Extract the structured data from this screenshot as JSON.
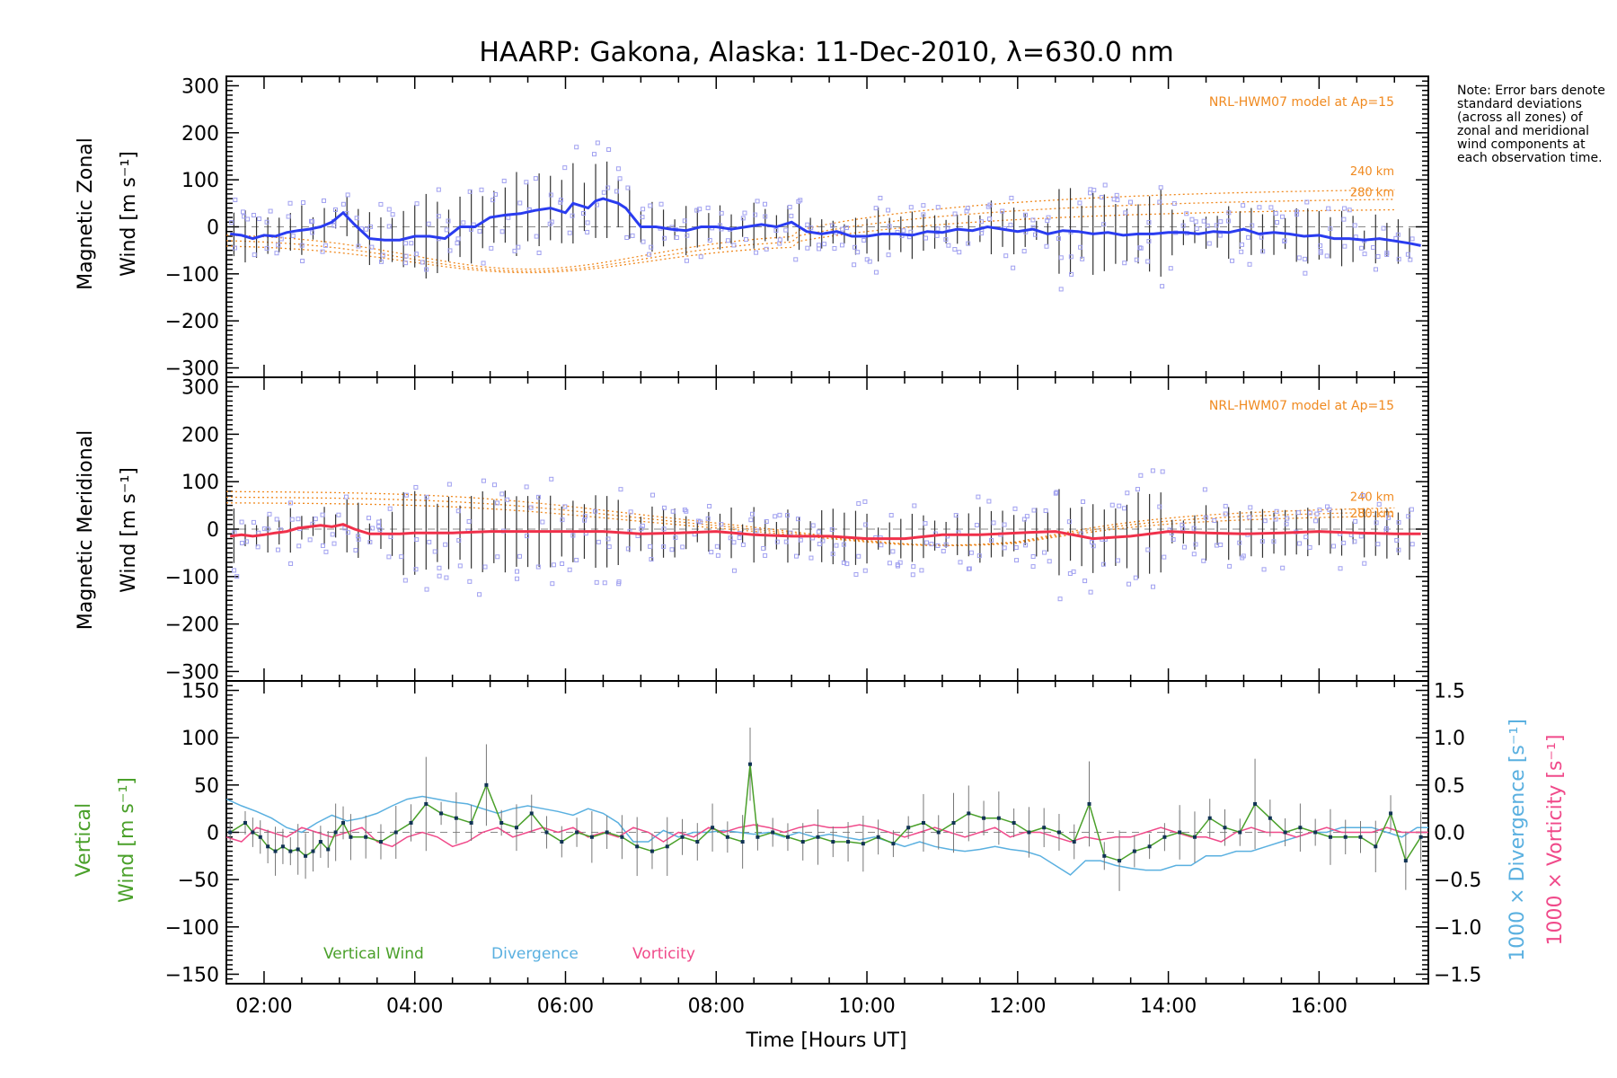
{
  "chart_data": [
    {
      "type": "line",
      "title": "HAARP: Gakona,  Alaska: 11-Dec-2010, λ=630.0 nm",
      "ylabel_line1": "Magnetic Zonal",
      "ylabel_line2": "Wind [m s⁻¹]",
      "ylim": [
        -320,
        320
      ],
      "y_ticks": [
        -300,
        -200,
        -100,
        0,
        100,
        200,
        300
      ],
      "model_annotation": "NRL-HWM07 model at Ap=15",
      "model_labels": [
        "240 km",
        "280 km"
      ],
      "series": [
        {
          "color": "#2a3cf0",
          "x": [
            1.55,
            1.7,
            1.85,
            2.0,
            2.15,
            2.3,
            2.45,
            2.6,
            2.75,
            2.9,
            3.05,
            3.2,
            3.4,
            3.6,
            3.8,
            4.0,
            4.2,
            4.4,
            4.6,
            4.8,
            5.0,
            5.2,
            5.4,
            5.6,
            5.8,
            6.0,
            6.1,
            6.2,
            6.3,
            6.4,
            6.5,
            6.6,
            6.7,
            6.8,
            7.0,
            7.2,
            7.4,
            7.6,
            7.8,
            8.0,
            8.2,
            8.4,
            8.6,
            8.8,
            9.0,
            9.2,
            9.4,
            9.6,
            9.8,
            10.0,
            10.2,
            10.4,
            10.6,
            10.8,
            11.0,
            11.2,
            11.4,
            11.6,
            11.8,
            12.0,
            12.2,
            12.4,
            12.6,
            12.8,
            13.0,
            13.2,
            13.4,
            13.6,
            13.8,
            14.0,
            14.2,
            14.4,
            14.6,
            14.8,
            15.0,
            15.2,
            15.4,
            15.6,
            15.8,
            16.0,
            16.2,
            16.4,
            16.6,
            16.8,
            17.0,
            17.2,
            17.35
          ],
          "y": [
            -15,
            -18,
            -25,
            -18,
            -20,
            -12,
            -8,
            -5,
            0,
            10,
            30,
            5,
            -25,
            -28,
            -28,
            -20,
            -20,
            -25,
            0,
            0,
            20,
            25,
            28,
            35,
            40,
            30,
            50,
            45,
            40,
            55,
            60,
            55,
            50,
            40,
            0,
            0,
            -5,
            -8,
            0,
            0,
            -5,
            0,
            5,
            0,
            10,
            -10,
            -15,
            -10,
            -20,
            -20,
            -15,
            -15,
            -18,
            -10,
            -12,
            -5,
            -8,
            0,
            -5,
            -10,
            -5,
            -15,
            -8,
            -10,
            -15,
            -12,
            -18,
            -15,
            -15,
            -12,
            -12,
            -15,
            -10,
            -12,
            -5,
            -15,
            -12,
            -15,
            -20,
            -18,
            -25,
            -25,
            -28,
            -25,
            -30,
            -35,
            -40
          ]
        }
      ]
    },
    {
      "type": "line",
      "ylabel_line1": "Magnetic Meridional",
      "ylabel_line2": "Wind [m s⁻¹]",
      "ylim": [
        -320,
        320
      ],
      "y_ticks": [
        -300,
        -200,
        -100,
        0,
        100,
        200,
        300
      ],
      "model_annotation": "NRL-HWM07 model at Ap=15",
      "model_labels": [
        "240 km",
        "280 km"
      ],
      "series": [
        {
          "color": "#f0304a",
          "x": [
            1.55,
            1.7,
            1.85,
            2.0,
            2.15,
            2.3,
            2.45,
            2.6,
            2.75,
            2.9,
            3.05,
            3.2,
            3.4,
            3.6,
            3.8,
            4.0,
            4.5,
            5.0,
            5.5,
            6.0,
            6.5,
            7.0,
            7.5,
            8.0,
            8.5,
            9.0,
            9.5,
            10.0,
            10.5,
            11.0,
            11.5,
            12.0,
            12.5,
            13.0,
            13.5,
            14.0,
            14.5,
            15.0,
            15.5,
            16.0,
            16.5,
            17.0,
            17.35
          ],
          "y": [
            -15,
            -12,
            -15,
            -12,
            -8,
            -5,
            2,
            5,
            8,
            5,
            10,
            0,
            -10,
            -10,
            -10,
            -8,
            -8,
            -5,
            -5,
            -5,
            -5,
            -10,
            -8,
            -5,
            -12,
            -15,
            -15,
            -20,
            -20,
            -12,
            -12,
            -8,
            -5,
            -20,
            -15,
            -5,
            -8,
            -10,
            -8,
            -5,
            -8,
            -10,
            -10
          ]
        }
      ]
    },
    {
      "type": "line",
      "ylabel_left_line1": "Vertical",
      "ylabel_left_line2": "Wind [m s⁻¹]",
      "ylabel_right_1": "1000 × Divergence [s⁻¹]",
      "ylabel_right_2": "1000 × Vorticity [s⁻¹]",
      "xlabel": "Time [Hours UT]",
      "ylim": [
        -160,
        160
      ],
      "y_ticks": [
        -150,
        -100,
        -50,
        0,
        50,
        100,
        150
      ],
      "y2lim": [
        -1.6,
        1.6
      ],
      "y2_ticks": [
        "1.5",
        "1.0",
        "0.5",
        "0.0",
        "−0.5",
        "−1.0",
        "−1.5"
      ],
      "x_ticks": [
        "02:00",
        "04:00",
        "06:00",
        "08:00",
        "10:00",
        "12:00",
        "14:00",
        "16:00"
      ],
      "xlim": [
        1.5,
        17.45
      ],
      "legend": [
        "Vertical Wind",
        "Divergence",
        "Vorticity"
      ],
      "series": [
        {
          "name": "Vertical Wind",
          "color": "#4aa02a",
          "x": [
            1.55,
            1.75,
            1.85,
            1.95,
            2.05,
            2.15,
            2.25,
            2.35,
            2.45,
            2.55,
            2.65,
            2.75,
            2.85,
            2.95,
            3.05,
            3.15,
            3.35,
            3.55,
            3.75,
            3.95,
            4.15,
            4.35,
            4.55,
            4.75,
            4.95,
            5.15,
            5.35,
            5.55,
            5.75,
            5.95,
            6.15,
            6.35,
            6.55,
            6.75,
            6.95,
            7.15,
            7.35,
            7.55,
            7.75,
            7.95,
            8.15,
            8.35,
            8.45,
            8.55,
            8.75,
            8.95,
            9.15,
            9.35,
            9.55,
            9.75,
            9.95,
            10.15,
            10.35,
            10.55,
            10.75,
            10.95,
            11.15,
            11.35,
            11.55,
            11.75,
            11.95,
            12.15,
            12.35,
            12.55,
            12.75,
            12.95,
            13.15,
            13.35,
            13.55,
            13.75,
            13.95,
            14.15,
            14.35,
            14.55,
            14.75,
            14.95,
            15.15,
            15.35,
            15.55,
            15.75,
            15.95,
            16.15,
            16.35,
            16.55,
            16.75,
            16.95,
            17.15,
            17.35
          ],
          "y": [
            0,
            10,
            0,
            -5,
            -15,
            -20,
            -15,
            -20,
            -18,
            -25,
            -20,
            -10,
            -18,
            0,
            10,
            -5,
            -5,
            -10,
            0,
            10,
            30,
            20,
            15,
            10,
            50,
            10,
            5,
            20,
            0,
            -10,
            0,
            -5,
            0,
            -5,
            -15,
            -20,
            -15,
            -5,
            -10,
            5,
            -5,
            -10,
            72,
            -5,
            0,
            -5,
            -10,
            -5,
            -10,
            -10,
            -12,
            -5,
            -12,
            5,
            10,
            0,
            10,
            20,
            15,
            15,
            10,
            0,
            5,
            0,
            -10,
            30,
            -25,
            -30,
            -20,
            -15,
            -5,
            0,
            -5,
            15,
            5,
            0,
            30,
            15,
            0,
            5,
            0,
            -5,
            -5,
            -5,
            -15,
            20,
            -30,
            -5
          ]
        },
        {
          "name": "Divergence",
          "color": "#5ab0e0",
          "x": [
            1.5,
            1.7,
            1.9,
            2.1,
            2.3,
            2.5,
            2.7,
            2.9,
            3.1,
            3.3,
            3.5,
            3.7,
            3.9,
            4.1,
            4.3,
            4.5,
            4.7,
            4.9,
            5.1,
            5.3,
            5.5,
            5.7,
            5.9,
            6.1,
            6.3,
            6.5,
            6.7,
            6.9,
            7.1,
            7.3,
            7.5,
            7.7,
            7.9,
            8.1,
            8.3,
            8.5,
            8.7,
            8.9,
            9.1,
            9.3,
            9.5,
            9.7,
            9.9,
            10.1,
            10.3,
            10.5,
            10.7,
            10.9,
            11.1,
            11.3,
            11.5,
            11.7,
            11.9,
            12.1,
            12.3,
            12.5,
            12.7,
            12.9,
            13.1,
            13.3,
            13.5,
            13.7,
            13.9,
            14.1,
            14.3,
            14.5,
            14.7,
            14.9,
            15.1,
            15.3,
            15.5,
            15.7,
            15.9,
            16.1,
            16.3,
            16.5,
            16.7,
            16.9,
            17.1,
            17.3,
            17.45
          ],
          "y": [
            0.35,
            0.28,
            0.22,
            0.15,
            0.05,
            0.0,
            0.1,
            0.18,
            0.12,
            0.15,
            0.2,
            0.28,
            0.35,
            0.38,
            0.35,
            0.32,
            0.3,
            0.25,
            0.2,
            0.25,
            0.28,
            0.25,
            0.22,
            0.18,
            0.25,
            0.2,
            0.1,
            -0.1,
            -0.1,
            0.02,
            -0.05,
            0.0,
            0.0,
            0.02,
            0.0,
            -0.02,
            0.0,
            -0.05,
            0.0,
            -0.05,
            -0.02,
            -0.05,
            -0.08,
            -0.05,
            -0.1,
            -0.15,
            -0.1,
            -0.15,
            -0.18,
            -0.2,
            -0.18,
            -0.15,
            -0.18,
            -0.2,
            -0.25,
            -0.35,
            -0.45,
            -0.3,
            -0.3,
            -0.35,
            -0.38,
            -0.4,
            -0.4,
            -0.35,
            -0.35,
            -0.25,
            -0.25,
            -0.2,
            -0.2,
            -0.15,
            -0.1,
            -0.05,
            0.0,
            0.0,
            0.05,
            0.05,
            0.05,
            0.0,
            -0.05,
            0.05,
            0.05
          ]
        },
        {
          "name": "Vorticity",
          "color": "#f04a8a",
          "x": [
            1.5,
            1.7,
            1.9,
            2.1,
            2.3,
            2.5,
            2.7,
            2.9,
            3.1,
            3.3,
            3.5,
            3.7,
            3.9,
            4.1,
            4.3,
            4.5,
            4.7,
            4.9,
            5.1,
            5.3,
            5.5,
            5.7,
            5.9,
            6.1,
            6.3,
            6.5,
            6.7,
            6.9,
            7.1,
            7.3,
            7.5,
            7.7,
            7.9,
            8.1,
            8.3,
            8.5,
            8.7,
            8.9,
            9.1,
            9.3,
            9.5,
            9.7,
            9.9,
            10.1,
            10.3,
            10.5,
            10.7,
            10.9,
            11.1,
            11.3,
            11.5,
            11.7,
            11.9,
            12.1,
            12.3,
            12.5,
            12.7,
            12.9,
            13.1,
            13.3,
            13.5,
            13.7,
            13.9,
            14.1,
            14.3,
            14.5,
            14.7,
            14.9,
            15.1,
            15.3,
            15.5,
            15.7,
            15.9,
            16.1,
            16.3,
            16.5,
            16.7,
            16.9,
            17.1,
            17.3,
            17.45
          ],
          "y": [
            -0.05,
            -0.1,
            0.05,
            0.0,
            -0.05,
            0.05,
            0.0,
            -0.05,
            0.0,
            0.05,
            -0.1,
            -0.15,
            -0.05,
            0.0,
            -0.05,
            -0.15,
            -0.1,
            0.0,
            0.05,
            -0.05,
            0.0,
            0.05,
            0.0,
            0.05,
            -0.05,
            0.0,
            -0.05,
            0.05,
            0.0,
            -0.1,
            0.0,
            -0.05,
            0.05,
            0.0,
            0.05,
            0.08,
            0.05,
            0.0,
            0.05,
            0.08,
            0.05,
            0.05,
            0.08,
            0.05,
            0.0,
            -0.05,
            0.0,
            0.05,
            0.0,
            -0.05,
            0.0,
            0.05,
            -0.05,
            0.0,
            0.0,
            -0.05,
            -0.1,
            -0.05,
            -0.08,
            -0.05,
            -0.05,
            0.0,
            0.05,
            0.0,
            -0.05,
            -0.05,
            -0.1,
            0.0,
            0.05,
            0.0,
            0.0,
            -0.05,
            0.0,
            0.05,
            0.0,
            0.0,
            0.0,
            0.05,
            0.0,
            0.0,
            0.0
          ]
        }
      ]
    }
  ],
  "note_text": "Note: Error bars denote standard deviations (across all zones) of zonal and meridional wind components at each observation time."
}
